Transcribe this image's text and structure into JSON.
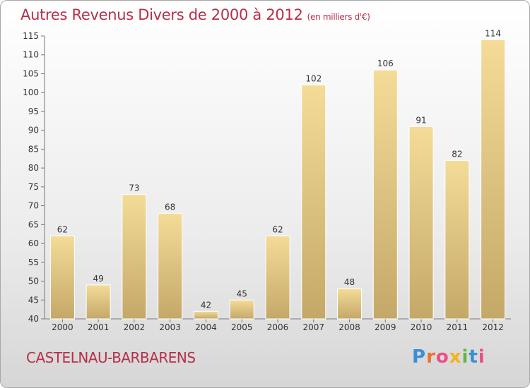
{
  "header": {
    "title": "Autres Revenus Divers de 2000 à 2012",
    "unit": "(en milliers d'€)"
  },
  "footer": {
    "commune": "CASTELNAU-BARBARENS",
    "logo_letters": [
      "P",
      "r",
      "o",
      "x",
      "i",
      "t",
      "i"
    ],
    "logo_colors": [
      "#3a8ed6",
      "#e8742c",
      "#e94f8a",
      "#f2b21b",
      "#62b744",
      "#3a8ed6",
      "#e94f8a"
    ]
  },
  "chart_data": {
    "type": "bar",
    "title": "Autres Revenus Divers de 2000 à 2012",
    "categories": [
      "2000",
      "2001",
      "2002",
      "2003",
      "2004",
      "2005",
      "2006",
      "2007",
      "2008",
      "2009",
      "2010",
      "2011",
      "2012"
    ],
    "values": [
      62,
      49,
      73,
      68,
      42,
      45,
      62,
      102,
      48,
      106,
      91,
      82,
      114
    ],
    "ylim": [
      40,
      115
    ],
    "yticks": [
      40,
      45,
      50,
      55,
      60,
      65,
      70,
      75,
      80,
      85,
      90,
      95,
      100,
      105,
      110,
      115
    ],
    "grid": false,
    "colors": {
      "bar_light": "#f4dc98",
      "bar_dark": "#c4a868",
      "axis": "#777777",
      "text": "#333333"
    }
  }
}
